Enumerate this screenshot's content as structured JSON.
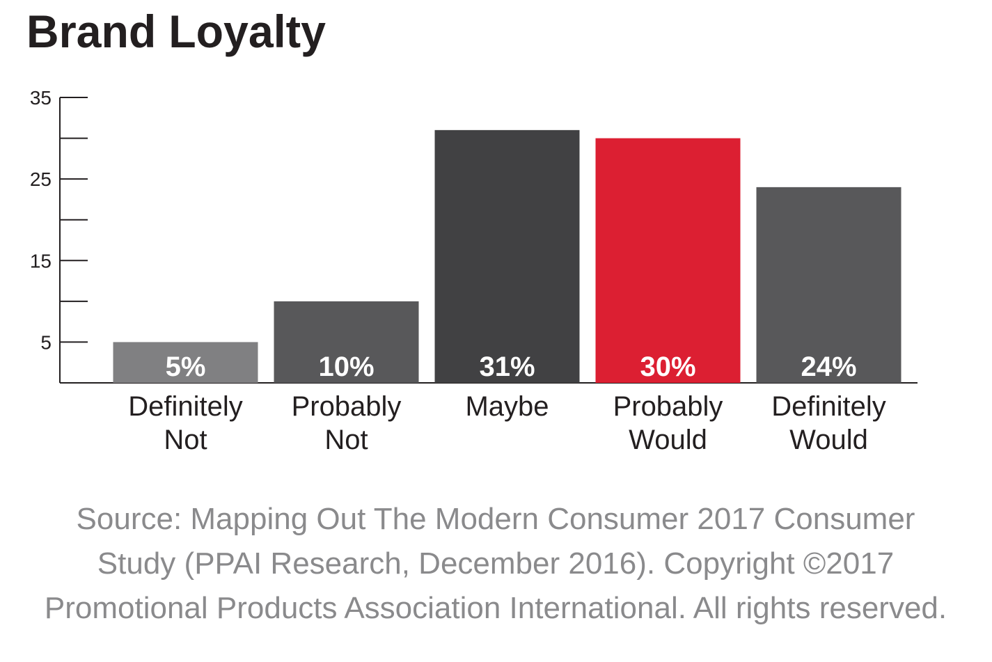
{
  "chart_data": {
    "type": "bar",
    "title": "Brand Loyalty",
    "categories": [
      "Definitely Not",
      "Probably Not",
      "Maybe",
      "Probably Would",
      "Definitely Would"
    ],
    "values": [
      5,
      10,
      31,
      30,
      24
    ],
    "value_labels": [
      "5%",
      "10%",
      "31%",
      "30%",
      "24%"
    ],
    "colors": [
      "#808082",
      "#58585a",
      "#414143",
      "#dc1f32",
      "#58585a"
    ],
    "ylim": [
      0,
      35
    ],
    "yticks": [
      5,
      15,
      25,
      35
    ],
    "minor_yticks": [
      10,
      20,
      30
    ],
    "note": [
      "Source: Mapping Out The Modern Consumer 2017 Consumer",
      "Study (PPAI Research, December 2016). Copyright ©2017",
      "Promotional Products Association International. All rights reserved."
    ]
  }
}
